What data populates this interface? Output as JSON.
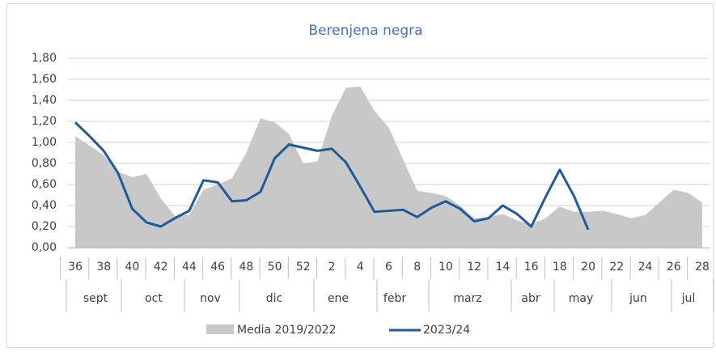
{
  "chart_data": {
    "type": "area-line",
    "title": "Berenjena negra",
    "categories": [
      "36",
      null,
      "38",
      null,
      "40",
      null,
      "42",
      null,
      "44",
      null,
      "46",
      null,
      "48",
      null,
      "50",
      null,
      "52",
      null,
      "2",
      null,
      "4",
      null,
      "6",
      null,
      "8",
      null,
      "10",
      null,
      "12",
      null,
      "14",
      null,
      "16",
      null,
      "18",
      null,
      "20",
      null,
      "22",
      null,
      "24",
      null,
      "26",
      null,
      "28"
    ],
    "month_labels": [
      "sept",
      "oct",
      "nov",
      "dic",
      "ene",
      "febr",
      "marz",
      "abr",
      "may",
      "jun",
      "jul"
    ],
    "series": [
      {
        "name": "Media 2019/2022",
        "kind": "area",
        "color": "#c8c8c8",
        "values": [
          1.06,
          0.97,
          0.88,
          0.72,
          0.67,
          0.7,
          0.47,
          0.3,
          0.31,
          0.55,
          0.6,
          0.66,
          0.9,
          1.23,
          1.19,
          1.08,
          0.8,
          0.82,
          1.25,
          1.52,
          1.53,
          1.3,
          1.14,
          0.84,
          0.54,
          0.52,
          0.49,
          0.4,
          0.28,
          0.29,
          0.32,
          0.26,
          0.22,
          0.28,
          0.39,
          0.34,
          0.34,
          0.35,
          0.32,
          0.28,
          0.31,
          0.43,
          0.55,
          0.52,
          0.43
        ]
      },
      {
        "name": "2023/24",
        "kind": "line",
        "color": "#1f5b9a",
        "values": [
          1.19,
          1.06,
          0.92,
          0.71,
          0.37,
          0.24,
          0.2,
          0.28,
          0.35,
          0.64,
          0.62,
          0.44,
          0.45,
          0.53,
          0.85,
          0.98,
          0.95,
          0.92,
          0.94,
          0.81,
          0.58,
          0.34,
          0.35,
          0.36,
          0.29,
          0.38,
          0.44,
          0.37,
          0.25,
          0.28,
          0.4,
          0.32,
          0.2,
          0.48,
          0.74,
          0.49,
          0.17,
          null,
          null,
          null,
          null,
          null,
          null,
          null,
          null
        ]
      }
    ],
    "ylim": [
      0,
      1.8
    ],
    "yticks": [
      {
        "value": 0,
        "label": "0,00"
      },
      {
        "value": 0.2,
        "label": "0,20"
      },
      {
        "value": 0.4,
        "label": "0,40"
      },
      {
        "value": 0.6,
        "label": "0,60"
      },
      {
        "value": 0.8,
        "label": "0,80"
      },
      {
        "value": 1,
        "label": "1,00"
      },
      {
        "value": 1.2,
        "label": "1,20"
      },
      {
        "value": 1.4,
        "label": "1,40"
      },
      {
        "value": 1.6,
        "label": "1,60"
      },
      {
        "value": 1.8,
        "label": "1,80"
      }
    ],
    "grid": true
  }
}
